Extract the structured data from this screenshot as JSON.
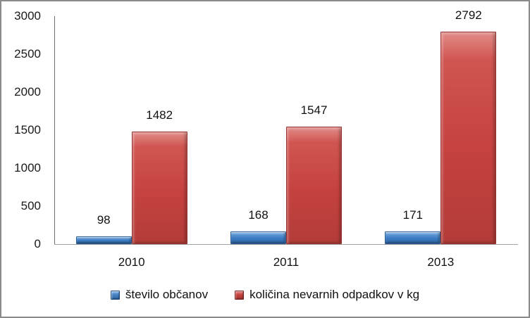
{
  "chart_data": {
    "type": "bar",
    "categories": [
      "2010",
      "2011",
      "2013"
    ],
    "series": [
      {
        "name": "število občanov",
        "color": "#3D7CC4",
        "values": [
          98,
          168,
          171
        ]
      },
      {
        "name": "količina nevarnih odpadkov v kg",
        "color": "#C5413E",
        "values": [
          1482,
          1547,
          2792
        ]
      }
    ],
    "data_labels": [
      "98",
      "168",
      "171",
      "1482",
      "1547",
      "2792"
    ],
    "ylim": [
      0,
      3000
    ],
    "yticks": [
      0,
      500,
      1000,
      1500,
      2000,
      2500,
      3000
    ],
    "xlabel": "",
    "ylabel": "",
    "title": "",
    "grid": false,
    "legend_position": "bottom",
    "frame_color": "#8B8B8B",
    "axis_line_color": "#6F6F6F",
    "baseline_color": "#A3A3A3"
  }
}
